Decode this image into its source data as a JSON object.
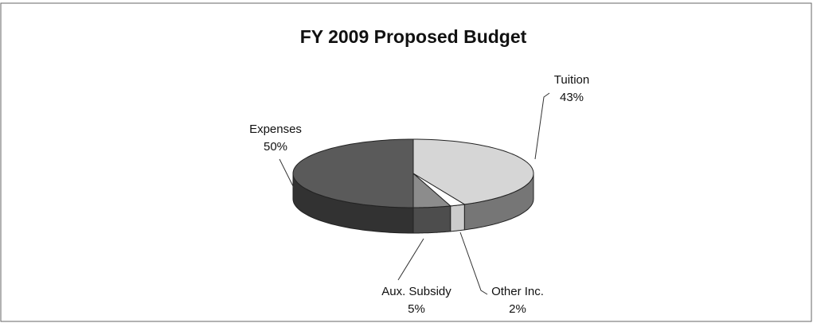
{
  "chart_data": {
    "type": "pie",
    "title": "FY 2009 Proposed Budget",
    "categories": [
      "Tuition",
      "Other Inc.",
      "Aux. Subsidy",
      "Expenses"
    ],
    "values": [
      43,
      2,
      5,
      50
    ],
    "value_labels": [
      "43%",
      "2%",
      "5%",
      "50%"
    ],
    "colors": [
      "#d6d6d6",
      "#ffffff",
      "#8c8c8c",
      "#5a5a5a"
    ]
  }
}
